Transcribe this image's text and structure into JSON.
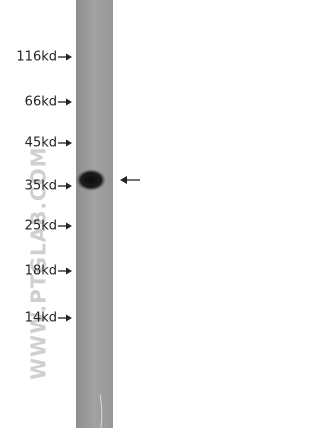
{
  "markers": [
    "116kd",
    "66kd",
    "45kd",
    "35kd",
    "25kd",
    "18kd",
    "14kd"
  ],
  "watermark": "WWW.PTGLAB.COM"
}
